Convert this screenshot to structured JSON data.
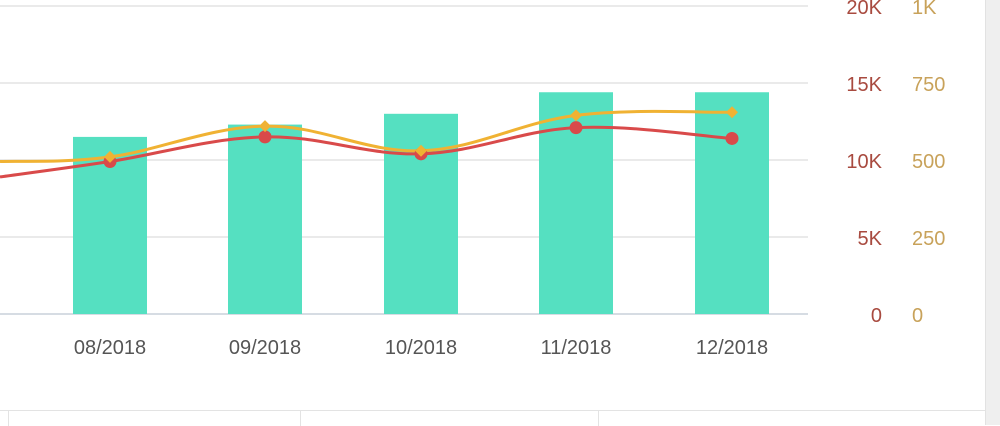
{
  "chart_data": {
    "type": "bar",
    "categories": [
      "08/2018",
      "09/2018",
      "10/2018",
      "11/2018",
      "12/2018"
    ],
    "y_left": {
      "ticks": [
        "0",
        "5K",
        "10K",
        "15K",
        "20K"
      ],
      "ylim": [
        0,
        20000
      ]
    },
    "y_right": {
      "ticks": [
        "0",
        "250",
        "500",
        "750",
        "1K"
      ],
      "ylim": [
        0,
        1000
      ]
    },
    "grid": true,
    "series": [
      {
        "type": "bar",
        "axis": "left",
        "values": [
          11500,
          12300,
          13000,
          14400,
          14400
        ]
      },
      {
        "type": "line",
        "axis": "left",
        "values": [
          9900,
          11500,
          10400,
          12100,
          11400
        ]
      },
      {
        "type": "line",
        "axis": "right",
        "values": [
          510,
          610,
          530,
          645,
          655
        ]
      }
    ],
    "colors": {
      "bar": "#55e0c1",
      "red_line": "#d94a4a",
      "orange_line": "#f0b233",
      "left_axis_text": "#a84a3f",
      "right_axis_text": "#c8a25a",
      "category_text": "#555555",
      "grid": "#dddddd"
    }
  }
}
